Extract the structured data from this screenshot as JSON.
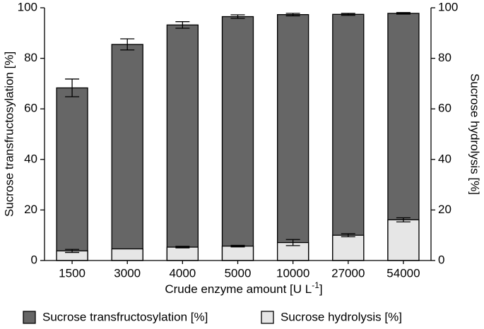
{
  "chart_data": {
    "type": "bar",
    "ylabel": "Sucrose transfructosylation [%]",
    "y2label": "Sucrose hydrolysis [%]",
    "xlabel": [
      "Crude enzyme amount [U L",
      "-1",
      "]"
    ],
    "categories": [
      "1500",
      "3000",
      "4000",
      "5000",
      "10000",
      "27000",
      "54000"
    ],
    "series": [
      {
        "name": "Sucrose transfructosylation [%]",
        "color": "#666666",
        "axis": "y",
        "values": [
          68.3,
          85.5,
          93.2,
          96.5,
          97.3,
          97.4,
          97.8
        ],
        "errors": [
          3.5,
          2.2,
          1.3,
          0.7,
          0.5,
          0.4,
          0.3
        ]
      },
      {
        "name": "Sucrose hydrolysis [%]",
        "color": "#e6e6e6",
        "axis": "y2",
        "values": [
          3.8,
          4.6,
          5.3,
          5.7,
          7.1,
          10.0,
          16.1
        ],
        "errors": [
          0.6,
          0,
          0.3,
          0.3,
          1.2,
          0.6,
          0.8
        ]
      }
    ],
    "ylim": [
      0,
      100
    ],
    "yticks": [
      0,
      20,
      40,
      60,
      80,
      100
    ],
    "y2lim": [
      0,
      100
    ],
    "y2ticks": [
      0,
      20,
      40,
      60,
      80,
      100
    ],
    "legend": "bottom"
  }
}
